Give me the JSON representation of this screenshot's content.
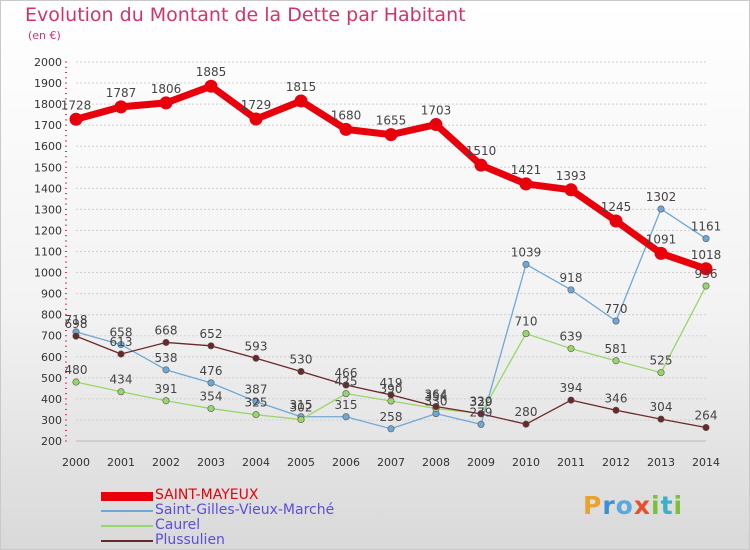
{
  "title": "Evolution du Montant de la Dette par Habitant",
  "subtitle": "(en €)",
  "logo_text": "Proxiti",
  "chart_data": {
    "type": "line",
    "x": [
      2000,
      2001,
      2002,
      2003,
      2004,
      2005,
      2006,
      2007,
      2008,
      2009,
      2010,
      2011,
      2012,
      2013,
      2014
    ],
    "ylim": [
      200,
      2000
    ],
    "yticks": [
      200,
      300,
      400,
      500,
      600,
      700,
      800,
      900,
      1000,
      1100,
      1200,
      1300,
      1400,
      1500,
      1600,
      1700,
      1800,
      1900,
      2000
    ],
    "grid": "horizontal-dashed",
    "legend_position": "bottom-left",
    "series": [
      {
        "name": "SAINT-MAYEUX",
        "color": "#e8000b",
        "values": [
          1728,
          1787,
          1806,
          1885,
          1729,
          1815,
          1680,
          1655,
          1703,
          1510,
          1421,
          1393,
          1245,
          1091,
          1018
        ]
      },
      {
        "name": "Saint-Gilles-Vieux-Marché",
        "color": "#6fa8d6",
        "values": [
          718,
          658,
          538,
          476,
          387,
          315,
          315,
          258,
          330,
          279,
          1039,
          918,
          770,
          1302,
          1161
        ]
      },
      {
        "name": "Caurel",
        "color": "#99d66a",
        "values": [
          480,
          434,
          391,
          354,
          325,
          302,
          425,
          390,
          354,
          330,
          710,
          639,
          581,
          525,
          936
        ]
      },
      {
        "name": "Plussulien",
        "color": "#6b2828",
        "values": [
          698,
          613,
          668,
          652,
          593,
          530,
          466,
          419,
          364,
          329,
          280,
          394,
          346,
          304,
          264
        ]
      }
    ]
  }
}
